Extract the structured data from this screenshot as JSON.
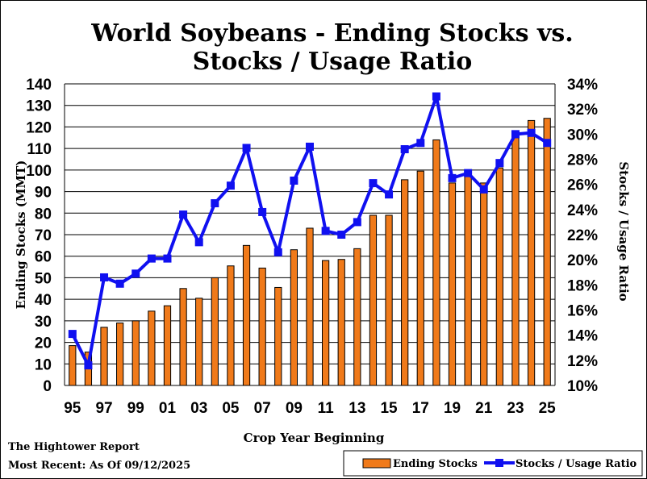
{
  "chart_data": {
    "type": "bar",
    "title_lines": [
      "World Soybeans - Ending Stocks vs.",
      "Stocks / Usage Ratio"
    ],
    "xlabel": "Crop Year Beginning",
    "ylabel": "Ending Stocks (MMT)",
    "y2label": "Stocks / Usage Ratio",
    "x_tick_labels": [
      "95",
      "97",
      "99",
      "01",
      "03",
      "05",
      "07",
      "09",
      "11",
      "13",
      "15",
      "17",
      "19",
      "21",
      "23",
      "25"
    ],
    "categories": [
      "1995",
      "1996",
      "1997",
      "1998",
      "1999",
      "2000",
      "2001",
      "2002",
      "2003",
      "2004",
      "2005",
      "2006",
      "2007",
      "2008",
      "2009",
      "2010",
      "2011",
      "2012",
      "2013",
      "2014",
      "2015",
      "2016",
      "2017",
      "2018",
      "2019",
      "2020",
      "2021",
      "2022",
      "2023",
      "2024",
      "2025"
    ],
    "ylim": [
      0,
      140
    ],
    "yticks": [
      0,
      10,
      20,
      30,
      40,
      50,
      60,
      70,
      80,
      90,
      100,
      110,
      120,
      130,
      140
    ],
    "y2lim": [
      10,
      34
    ],
    "y2ticks": [
      "10%",
      "12%",
      "14%",
      "16%",
      "18%",
      "20%",
      "22%",
      "24%",
      "26%",
      "28%",
      "30%",
      "32%",
      "34%"
    ],
    "grid": true,
    "legend_placement": "bottom-right",
    "series": [
      {
        "name": "Ending Stocks",
        "type": "bar",
        "axis": "left",
        "color": "#f07a1a",
        "values": [
          18.5,
          15.5,
          27,
          29,
          30,
          34.5,
          37,
          45,
          40.5,
          50,
          55.5,
          65,
          54.5,
          45.5,
          63,
          73,
          58,
          58.5,
          63.5,
          79,
          79,
          95.5,
          99.5,
          114,
          94,
          99,
          94,
          101,
          115,
          123,
          124
        ]
      },
      {
        "name": "Stocks / Usage Ratio",
        "type": "line",
        "axis": "right",
        "color": "#1010f0",
        "values": [
          14.1,
          11.6,
          18.6,
          18.1,
          18.9,
          20.1,
          20.1,
          23.6,
          21.4,
          24.5,
          25.9,
          28.9,
          23.8,
          20.6,
          26.3,
          29.0,
          22.3,
          22.0,
          23.0,
          26.1,
          25.2,
          28.8,
          29.3,
          33.0,
          26.5,
          26.9,
          25.6,
          27.7,
          30.0,
          30.1,
          29.3
        ]
      }
    ]
  },
  "footer": {
    "source": "The Hightower Report",
    "date": "Most Recent: As Of 09/12/2025"
  }
}
